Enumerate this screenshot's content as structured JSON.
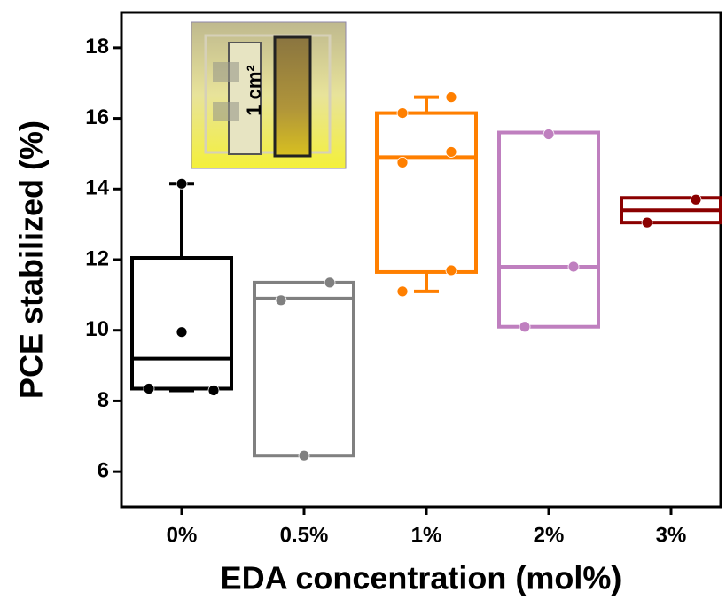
{
  "chart_data": {
    "type": "box",
    "x_label": "EDA concentration (mol%)",
    "y_label": "PCE stabilized (%)",
    "inset_label": "1 cm²",
    "categories": [
      "0%",
      "0.5%",
      "1%",
      "2%",
      "3%"
    ],
    "boxes": [
      {
        "color": "#000000",
        "q1": 8.35,
        "median": 9.2,
        "q3": 12.05,
        "whisker_low": 8.3,
        "whisker_high": 14.15,
        "points": [
          8.35,
          9.95,
          8.3,
          14.15
        ]
      },
      {
        "color": "#808080",
        "q1": 6.45,
        "median": 10.9,
        "q3": 11.35,
        "points": [
          10.85,
          11.35,
          6.45
        ]
      },
      {
        "color": "#ff7f00",
        "q1": 11.65,
        "median": 14.9,
        "q3": 16.15,
        "whisker_low": 11.1,
        "whisker_high": 16.6,
        "points": [
          16.15,
          14.75,
          11.1,
          16.6,
          15.05,
          11.7
        ]
      },
      {
        "color": "#bf7fbf",
        "q1": 10.1,
        "median": 11.8,
        "q3": 15.6,
        "points": [
          10.1,
          15.55,
          11.8
        ]
      },
      {
        "color": "#8b0000",
        "q1": 13.05,
        "median": 13.4,
        "q3": 13.75,
        "points": [
          13.05,
          13.7
        ]
      }
    ],
    "ylim": [
      5,
      19
    ],
    "yticks": [
      6,
      8,
      10,
      12,
      14,
      16,
      18
    ]
  }
}
